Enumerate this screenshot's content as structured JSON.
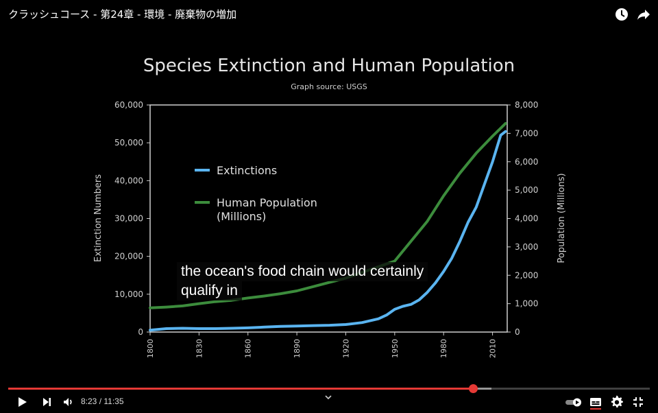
{
  "video": {
    "title": "クラッシュコース - 第24章 - 環境 - 廃棄物の増加",
    "caption_lines": [
      "the ocean's food chain would certainly",
      "qualify in"
    ],
    "time_current": "8:23",
    "time_separator": "/",
    "time_total": "11:35",
    "progress_fraction": 0.724,
    "buffer_fraction": 0.753,
    "icons": {
      "watch_later": "clock-icon",
      "share": "share-icon",
      "play": "play-icon",
      "next": "next-icon",
      "volume": "volume-icon",
      "autoplay": "autoplay-toggle-icon",
      "subtitles": "subtitles-icon",
      "settings": "gear-icon",
      "exit_fullscreen": "exit-fullscreen-icon",
      "expand": "chevron-down-icon"
    },
    "colors": {
      "progress": "#e53935",
      "extinctions": "#5ab4f0",
      "population": "#3c8c3c"
    }
  },
  "chart_data": {
    "type": "line",
    "title": "Species Extinction and Human Population",
    "subtitle": "Graph source: USGS",
    "ylabel": "Extinction Numbers",
    "y2label": "Population (Millions)",
    "xlim": [
      1800,
      2019
    ],
    "ylim": [
      0,
      60000
    ],
    "y2lim": [
      0,
      8000
    ],
    "x_ticks": [
      "1800",
      "1830",
      "1860",
      "1890",
      "1920",
      "1950",
      "1980",
      "2010"
    ],
    "x_tick_values": [
      1800,
      1830,
      1860,
      1890,
      1920,
      1950,
      1980,
      2010
    ],
    "y_ticks": [
      "0",
      "10,000",
      "20,000",
      "30,000",
      "40,000",
      "50,000",
      "60,000"
    ],
    "y_tick_values": [
      0,
      10000,
      20000,
      30000,
      40000,
      50000,
      60000
    ],
    "y2_ticks": [
      "0",
      "1,000",
      "2,000",
      "3,000",
      "4,000",
      "5,000",
      "6,000",
      "7,000",
      "8,000"
    ],
    "y2_tick_values": [
      0,
      1000,
      2000,
      3000,
      4000,
      5000,
      6000,
      7000,
      8000
    ],
    "legend_position": "upper-left",
    "series": [
      {
        "name": "Extinctions",
        "axis": "left",
        "x": [
          1800,
          1810,
          1820,
          1830,
          1840,
          1850,
          1860,
          1870,
          1880,
          1890,
          1900,
          1910,
          1920,
          1930,
          1940,
          1945,
          1950,
          1955,
          1960,
          1965,
          1970,
          1975,
          1980,
          1985,
          1990,
          1995,
          2000,
          2005,
          2010,
          2015,
          2018
        ],
        "values": [
          500,
          900,
          1000,
          900,
          900,
          1000,
          1100,
          1300,
          1500,
          1600,
          1700,
          1800,
          2000,
          2500,
          3500,
          4500,
          6000,
          6800,
          7300,
          8500,
          10500,
          13000,
          16000,
          19500,
          24000,
          29000,
          33000,
          39000,
          45000,
          52000,
          53000
        ]
      },
      {
        "name": "Human Population (Millions)",
        "axis": "right",
        "x": [
          1800,
          1810,
          1820,
          1830,
          1840,
          1850,
          1860,
          1870,
          1880,
          1890,
          1900,
          1910,
          1920,
          1930,
          1940,
          1950,
          1960,
          1970,
          1980,
          1990,
          2000,
          2010,
          2018
        ],
        "values": [
          850,
          880,
          920,
          1000,
          1070,
          1120,
          1200,
          1270,
          1350,
          1450,
          1600,
          1750,
          1900,
          2100,
          2300,
          2500,
          3200,
          3900,
          4800,
          5600,
          6300,
          6900,
          7350
        ]
      }
    ]
  }
}
